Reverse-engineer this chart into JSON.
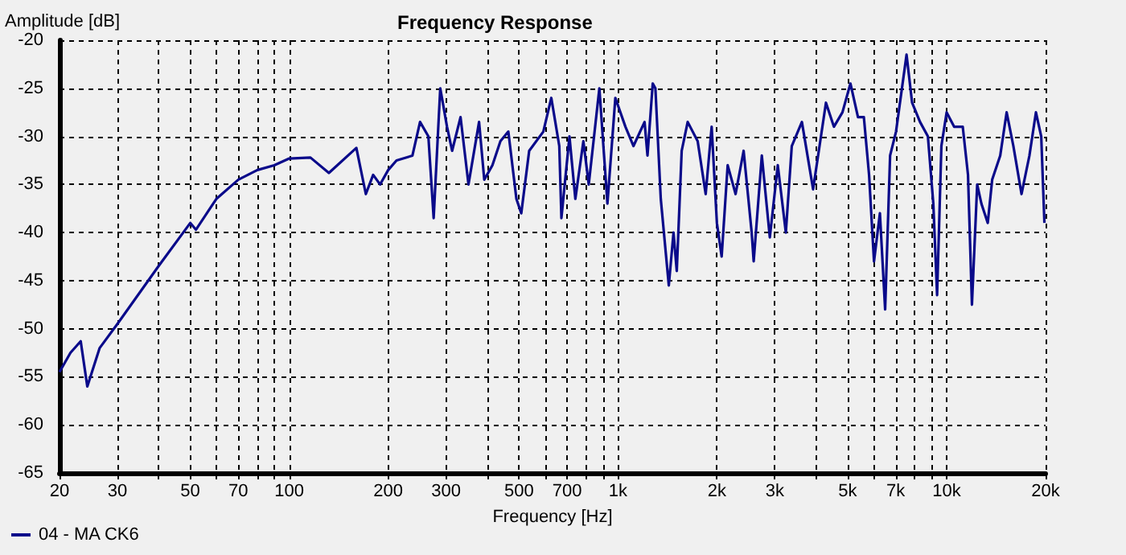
{
  "chart_data": {
    "type": "line",
    "title": "Frequency Response",
    "xlabel": "Frequency [Hz]",
    "ylabel": "Amplitude [dB]",
    "log": "x",
    "grid": true,
    "legend": "bottom left",
    "line_style": "solid",
    "marker": "none",
    "xlim": [
      20,
      20000
    ],
    "ylim": [
      -65,
      -20
    ],
    "xticks": [
      20,
      30,
      {
        "value": 40,
        "label": null
      },
      50,
      {
        "value": 60,
        "label": null
      },
      70,
      {
        "value": 80,
        "label": null
      },
      {
        "value": 90,
        "label": null
      },
      100,
      200,
      300,
      {
        "value": 400,
        "label": null
      },
      500,
      {
        "value": 600,
        "label": null
      },
      700,
      {
        "value": 800,
        "label": null
      },
      {
        "value": 900,
        "label": null
      },
      {
        "value": 1000,
        "label": "1k"
      },
      {
        "value": 2000,
        "label": "2k"
      },
      {
        "value": 3000,
        "label": "3k"
      },
      {
        "value": 4000,
        "label": null
      },
      {
        "value": 5000,
        "label": "5k"
      },
      {
        "value": 6000,
        "label": null
      },
      {
        "value": 7000,
        "label": "7k"
      },
      {
        "value": 8000,
        "label": null
      },
      {
        "value": 9000,
        "label": null
      },
      {
        "value": 10000,
        "label": "10k"
      },
      {
        "value": 20000,
        "label": "20k"
      }
    ],
    "yticks": [
      -65,
      -60,
      -55,
      -50,
      -45,
      -40,
      -35,
      -30,
      -25,
      -20
    ],
    "series": [
      {
        "name": "04 - MA CK6",
        "color": "#0a0a8a",
        "x": [
          20,
          21.6,
          23.2,
          24.3,
          26.5,
          30,
          40,
          50,
          52,
          60,
          70,
          80,
          90,
          100,
          116,
          132,
          160,
          171,
          180,
          189,
          200,
          212,
          237,
          250,
          265,
          275,
          288,
          302,
          313,
          332,
          351,
          378,
          392,
          415,
          439,
          464,
          491,
          508,
          537,
          593,
          627,
          663,
          673,
          712,
          742,
          785,
          815,
          878,
          929,
          982,
          1054,
          1115,
          1205,
          1230,
          1276,
          1300,
          1350,
          1428,
          1476,
          1510,
          1563,
          1630,
          1748,
          1849,
          1928,
          2000,
          2068,
          2157,
          2280,
          2412,
          2552,
          2588,
          2740,
          2898,
          3064,
          3242,
          3380,
          3628,
          3924,
          4294,
          4540,
          4820,
          5098,
          5374,
          5600,
          5808,
          6012,
          6266,
          6500,
          6730,
          7016,
          7552,
          7852,
          8300,
          8770,
          9110,
          9354,
          9640,
          10000,
          10540,
          11196,
          11616,
          11940,
          12388,
          12760,
          13340,
          13760,
          14556,
          15226,
          15960,
          16900,
          17860,
          18694,
          19400,
          19840
        ],
        "values": [
          -54.5,
          -52.5,
          -51.3,
          -56,
          -52,
          -49.5,
          -43.5,
          -39,
          -39.7,
          -36.5,
          -34.5,
          -33.5,
          -33,
          -32.3,
          -32.2,
          -33.8,
          -31.2,
          -36,
          -34,
          -35,
          -33.5,
          -32.5,
          -32,
          -28.5,
          -30,
          -38.5,
          -25,
          -29,
          -31.5,
          -28,
          -35,
          -28.5,
          -34.5,
          -33,
          -30.5,
          -29.5,
          -36.5,
          -38,
          -31.5,
          -29.5,
          -26,
          -31,
          -38.5,
          -30,
          -36.5,
          -30.5,
          -35,
          -25,
          -37,
          -26,
          -29,
          -31,
          -28.5,
          -32,
          -24.5,
          -25,
          -36.5,
          -45.5,
          -40,
          -44,
          -31.5,
          -28.5,
          -30.5,
          -36,
          -29,
          -39,
          -42.5,
          -33,
          -36,
          -31.5,
          -40,
          -43,
          -32,
          -40.5,
          -33,
          -40,
          -31,
          -28.5,
          -35.5,
          -26.5,
          -29,
          -27.5,
          -24.5,
          -28,
          -28,
          -34,
          -43,
          -38,
          -48,
          -32,
          -29.5,
          -21.5,
          -26.5,
          -28.5,
          -30,
          -37,
          -46.5,
          -31,
          -27.5,
          -29,
          -29,
          -34,
          -47.5,
          -35,
          -37,
          -39,
          -34.5,
          -32,
          -27.5,
          -31,
          -36,
          -32,
          -27.5,
          -30,
          -39
        ]
      }
    ]
  }
}
